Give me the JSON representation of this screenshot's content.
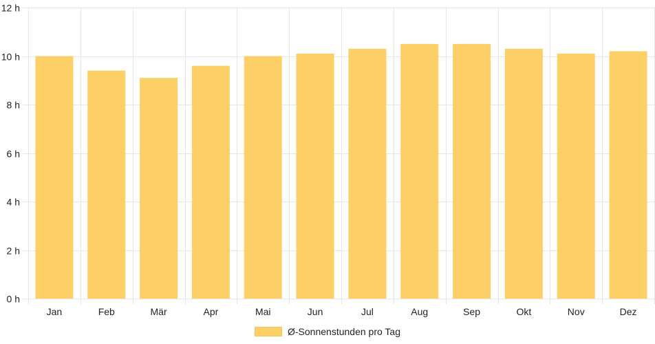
{
  "chart_data": {
    "type": "bar",
    "categories": [
      "Jan",
      "Feb",
      "Mär",
      "Apr",
      "Mai",
      "Jun",
      "Jul",
      "Aug",
      "Sep",
      "Okt",
      "Nov",
      "Dez"
    ],
    "series": [
      {
        "name": "Ø-Sonnenstunden pro Tag",
        "values": [
          10.0,
          9.4,
          9.1,
          9.6,
          10.0,
          10.1,
          10.3,
          10.5,
          10.5,
          10.3,
          10.1,
          10.2
        ]
      }
    ],
    "yticks": [
      "0 h",
      "2 h",
      "4 h",
      "6 h",
      "8 h",
      "10 h",
      "12 h"
    ],
    "ylim": [
      0,
      12
    ],
    "grid": true,
    "legend_position": "bottom",
    "bar_color": "#fdd067",
    "grid_color": "#e6e6e6"
  }
}
